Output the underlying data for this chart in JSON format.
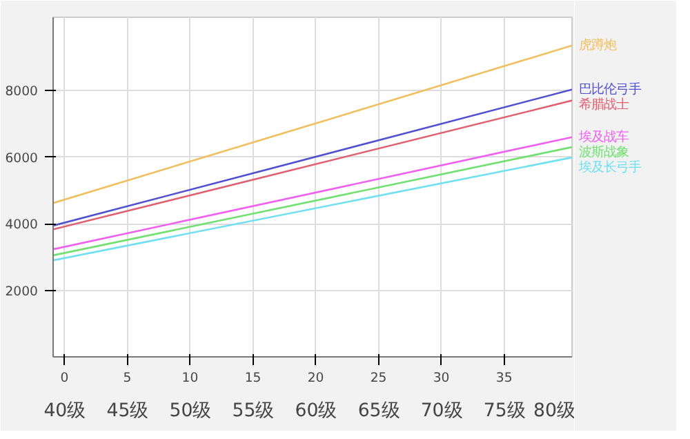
{
  "chart_data": {
    "type": "line",
    "x": [
      -0.9,
      40.4
    ],
    "series": [
      {
        "name": "虎蹲炮",
        "color": "#f0c060",
        "values": [
          4620,
          9350
        ]
      },
      {
        "name": "巴比伦弓手",
        "color": "#5050d0",
        "values": [
          3940,
          8030
        ]
      },
      {
        "name": "希腊战士",
        "color": "#e06070",
        "values": [
          3830,
          7700
        ]
      },
      {
        "name": "埃及战车",
        "color": "#f060f0",
        "values": [
          3230,
          6600
        ]
      },
      {
        "name": "波斯战象",
        "color": "#70e070",
        "values": [
          3050,
          6300
        ]
      },
      {
        "name": "埃及长弓手",
        "color": "#70e0f0",
        "values": [
          2900,
          5990
        ]
      }
    ],
    "xlim": [
      -0.9,
      40.4
    ],
    "ylim": [
      0,
      10200
    ],
    "xticks": [
      0,
      5,
      10,
      15,
      20,
      25,
      30,
      35
    ],
    "yticks": [
      2000,
      4000,
      6000,
      8000
    ],
    "x2lim": [
      39.1,
      80.4
    ],
    "x2ticks": [
      {
        "value": 40,
        "label": "40级"
      },
      {
        "value": 45,
        "label": "45级"
      },
      {
        "value": 50,
        "label": "50级"
      },
      {
        "value": 55,
        "label": "55级"
      },
      {
        "value": 60,
        "label": "60级"
      },
      {
        "value": 65,
        "label": "65级"
      },
      {
        "value": 70,
        "label": "70级"
      },
      {
        "value": 75,
        "label": "75级"
      },
      {
        "value": 80,
        "label": "80级"
      }
    ],
    "grid": true,
    "marker": "none",
    "line_style": "solid"
  }
}
